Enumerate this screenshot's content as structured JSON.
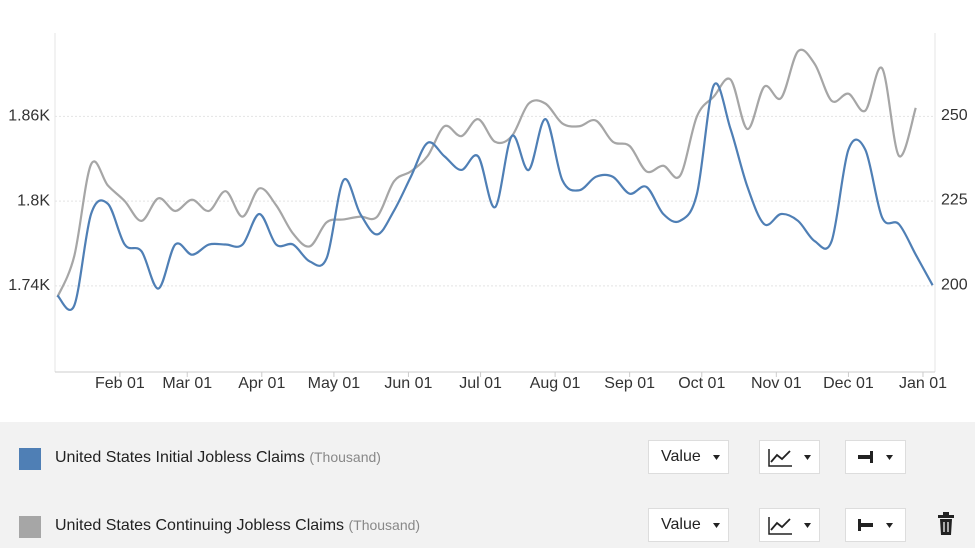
{
  "chart_data": {
    "type": "line",
    "x": [
      5,
      12,
      19,
      26,
      33,
      40,
      47,
      54,
      61,
      68,
      75,
      82,
      89,
      96,
      103,
      110,
      117,
      124,
      131,
      138,
      145,
      152,
      159,
      166,
      173,
      180,
      187,
      194,
      201,
      208,
      215,
      222,
      229,
      236,
      243,
      250,
      257,
      264,
      271,
      278,
      285,
      292,
      299,
      306,
      313,
      320,
      327,
      334,
      341,
      348,
      355,
      362,
      369
    ],
    "xlim": [
      4,
      370
    ],
    "xticks": [
      {
        "value": 31,
        "label": "Feb 01"
      },
      {
        "value": 59,
        "label": "Mar 01"
      },
      {
        "value": 90,
        "label": "Apr 01"
      },
      {
        "value": 120,
        "label": "May 01"
      },
      {
        "value": 151,
        "label": "Jun 01"
      },
      {
        "value": 181,
        "label": "Jul 01"
      },
      {
        "value": 212,
        "label": "Aug 01"
      },
      {
        "value": 243,
        "label": "Sep 01"
      },
      {
        "value": 273,
        "label": "Oct 01"
      },
      {
        "value": 304,
        "label": "Nov 01"
      },
      {
        "value": 334,
        "label": "Dec 01"
      },
      {
        "value": 365,
        "label": "Jan 01"
      }
    ],
    "ylim": [
      1679,
      1919
    ],
    "yticks": [
      {
        "value": 1740,
        "label": "1.74K"
      },
      {
        "value": 1800,
        "label": "1.8K"
      },
      {
        "value": 1860,
        "label": "1.86K"
      }
    ],
    "y2lim": [
      174.4,
      274.4
    ],
    "y2ticks": [
      200,
      225,
      250
    ],
    "grid": true,
    "series": [
      {
        "name": "United States Initial Jobless Claims",
        "unit": "(Thousand)",
        "selector": "Value",
        "color": "#4f7fb5",
        "axis": "y2",
        "values": [
          197,
          194,
          221,
          224,
          212,
          210,
          199,
          212,
          209,
          212,
          212,
          212,
          221,
          212,
          212,
          207,
          208,
          231,
          221,
          215,
          222,
          232,
          242,
          238,
          234,
          238,
          223,
          244,
          234,
          249,
          231,
          228,
          232,
          232,
          227,
          229,
          221,
          219,
          227,
          259,
          246,
          229,
          218,
          221,
          219,
          213,
          213,
          240,
          240,
          220,
          218,
          209,
          200
        ]
      },
      {
        "name": "United States Continuing Jobless Claims",
        "unit": "(Thousand)",
        "selector": "Value",
        "color": "#a6a6a6",
        "axis": "y",
        "values": [
          1732,
          1761,
          1826,
          1811,
          1800,
          1786,
          1802,
          1793,
          1801,
          1793,
          1807,
          1789,
          1809,
          1797,
          1777,
          1768,
          1785,
          1787,
          1789,
          1789,
          1814,
          1821,
          1832,
          1853,
          1846,
          1858,
          1842,
          1846,
          1869,
          1869,
          1855,
          1853,
          1857,
          1842,
          1839,
          1821,
          1825,
          1818,
          1860,
          1874,
          1886,
          1851,
          1881,
          1873,
          1906,
          1897,
          1871,
          1876,
          1864,
          1894,
          1832,
          1866,
          null
        ]
      }
    ]
  }
}
